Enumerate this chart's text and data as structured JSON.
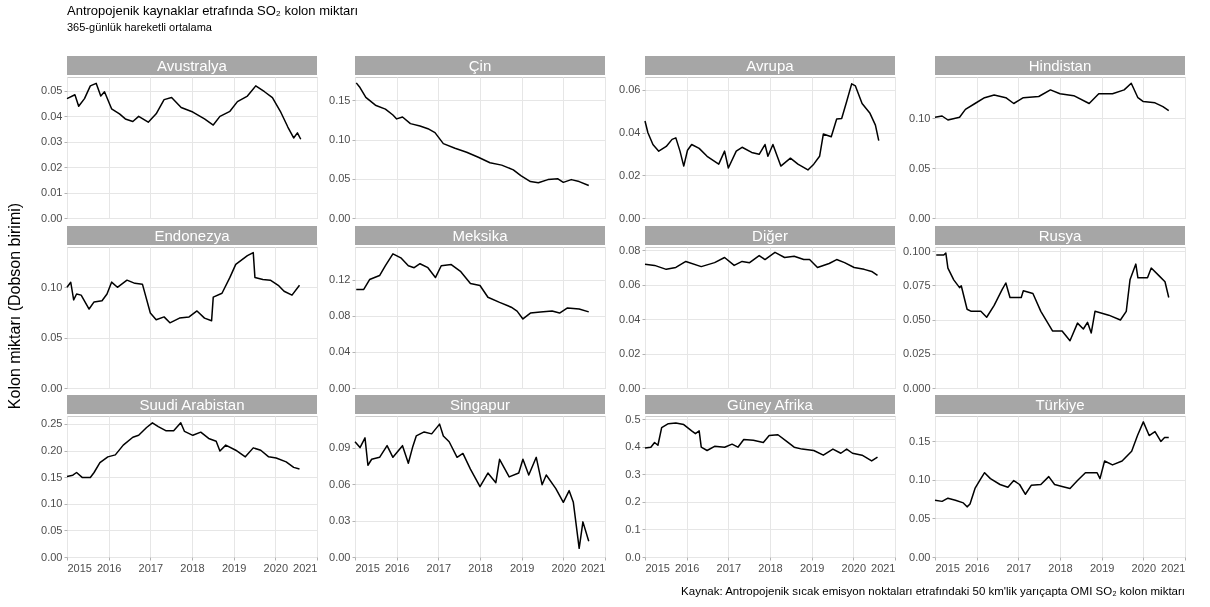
{
  "chart_data": [
    {
      "type": "line",
      "title": "Avustralya",
      "annotations": [
        "Antropojenik kaynaklar etrafında SO₂ kolon miktarı",
        "365-günlük hareketli ortalama"
      ],
      "xlim": [
        2015,
        2021
      ],
      "xticks": [
        2015,
        2016,
        2017,
        2018,
        2019,
        2020,
        2021
      ],
      "ylim": [
        0,
        0.0555
      ],
      "yticks": [
        {
          "value": 0,
          "label": "0.00"
        },
        0.01,
        0.02,
        0.03,
        0.04,
        0.05
      ],
      "grid": true,
      "tick_labels": "y",
      "series": [
        {
          "color": "#000000",
          "x": [
            2015.0,
            2015.19,
            2015.28,
            2015.42,
            2015.56,
            2015.7,
            2015.81,
            2015.9,
            2016.07,
            2016.26,
            2016.4,
            2016.58,
            2016.72,
            2016.95,
            2017.14,
            2017.33,
            2017.51,
            2017.74,
            2018.02,
            2018.3,
            2018.51,
            2018.67,
            2018.91,
            2019.09,
            2019.33,
            2019.53,
            2019.74,
            2019.93,
            2020.12,
            2020.3,
            2020.44,
            2020.53,
            2020.61
          ],
          "values": [
            0.047,
            0.0485,
            0.044,
            0.047,
            0.052,
            0.053,
            0.048,
            0.0497,
            0.043,
            0.041,
            0.039,
            0.038,
            0.04,
            0.0377,
            0.041,
            0.0466,
            0.0474,
            0.0435,
            0.0417,
            0.039,
            0.0366,
            0.04,
            0.042,
            0.0458,
            0.048,
            0.052,
            0.0497,
            0.0474,
            0.042,
            0.0358,
            0.0315,
            0.0335,
            0.031
          ]
        }
      ]
    },
    {
      "type": "line",
      "title": "Çin",
      "xlim": [
        2015,
        2021
      ],
      "xticks": [
        2015,
        2016,
        2017,
        2018,
        2019,
        2020,
        2021
      ],
      "ylim": [
        0,
        0.18
      ],
      "yticks": [
        {
          "value": 0,
          "label": "0.00"
        },
        0.05,
        {
          "value": 0.1,
          "label": "0.10"
        },
        0.15
      ],
      "grid": true,
      "tick_labels": "y",
      "series": [
        {
          "color": "#000000",
          "x": [
            2015.03,
            2015.12,
            2015.26,
            2015.49,
            2015.73,
            2015.91,
            2016.0,
            2016.14,
            2016.33,
            2016.56,
            2016.75,
            2016.92,
            2017.12,
            2017.4,
            2017.68,
            2017.96,
            2018.24,
            2018.52,
            2018.8,
            2018.98,
            2019.21,
            2019.4,
            2019.63,
            2019.87,
            2020.0,
            2020.19,
            2020.38,
            2020.61
          ],
          "values": [
            0.1725,
            0.1665,
            0.154,
            0.144,
            0.139,
            0.1315,
            0.1265,
            0.129,
            0.1205,
            0.1175,
            0.114,
            0.109,
            0.095,
            0.089,
            0.084,
            0.0775,
            0.0705,
            0.0675,
            0.0615,
            0.054,
            0.0465,
            0.045,
            0.049,
            0.05,
            0.0455,
            0.049,
            0.0465,
            0.0415
          ]
        }
      ]
    },
    {
      "type": "line",
      "title": "Avrupa",
      "xlim": [
        2015,
        2021
      ],
      "xticks": [
        2015,
        2016,
        2017,
        2018,
        2019,
        2020,
        2021
      ],
      "ylim": [
        0,
        0.066
      ],
      "yticks": [
        {
          "value": 0,
          "label": "0.00"
        },
        0.02,
        0.04,
        0.06
      ],
      "grid": true,
      "tick_labels": "y",
      "series": [
        {
          "color": "#000000",
          "x": [
            2015.0,
            2015.07,
            2015.19,
            2015.33,
            2015.51,
            2015.65,
            2015.74,
            2015.84,
            2015.93,
            2016.02,
            2016.12,
            2016.3,
            2016.49,
            2016.77,
            2016.91,
            2017.0,
            2017.19,
            2017.33,
            2017.56,
            2017.74,
            2017.88,
            2017.95,
            2018.07,
            2018.26,
            2018.49,
            2018.67,
            2018.91,
            2019.05,
            2019.19,
            2019.28,
            2019.47,
            2019.6,
            2019.72,
            2019.84,
            2019.96,
            2020.05,
            2020.21,
            2020.4,
            2020.53,
            2020.61
          ],
          "values": [
            0.0454,
            0.0399,
            0.0344,
            0.0313,
            0.0335,
            0.0368,
            0.0375,
            0.0313,
            0.0243,
            0.0317,
            0.0344,
            0.0326,
            0.0289,
            0.0252,
            0.0313,
            0.0234,
            0.0313,
            0.0331,
            0.0307,
            0.0298,
            0.0344,
            0.0289,
            0.0344,
            0.0243,
            0.028,
            0.0252,
            0.0225,
            0.0252,
            0.0289,
            0.0393,
            0.038,
            0.0463,
            0.0466,
            0.0545,
            0.0628,
            0.0618,
            0.0536,
            0.049,
            0.0435,
            0.0362
          ]
        }
      ]
    },
    {
      "type": "line",
      "title": "Hindistan",
      "xlim": [
        2015,
        2021
      ],
      "xticks": [
        2015,
        2016,
        2017,
        2018,
        2019,
        2020,
        2021
      ],
      "ylim": [
        0,
        0.141
      ],
      "yticks": [
        {
          "value": 0,
          "label": "0.00"
        },
        0.05,
        {
          "value": 0.1,
          "label": "0.10"
        }
      ],
      "grid": true,
      "tick_labels": "y",
      "series": [
        {
          "color": "#000000",
          "x": [
            2015.0,
            2015.17,
            2015.31,
            2015.59,
            2015.73,
            2015.96,
            2016.19,
            2016.42,
            2016.7,
            2016.89,
            2017.12,
            2017.49,
            2017.77,
            2018.0,
            2018.33,
            2018.7,
            2018.93,
            2019.26,
            2019.54,
            2019.71,
            2019.87,
            2020.0,
            2020.28,
            2020.47,
            2020.61
          ],
          "values": [
            0.1008,
            0.102,
            0.098,
            0.1008,
            0.1086,
            0.1145,
            0.1203,
            0.123,
            0.1203,
            0.1145,
            0.1203,
            0.1215,
            0.1281,
            0.1242,
            0.1223,
            0.1145,
            0.1242,
            0.1242,
            0.1281,
            0.1348,
            0.1203,
            0.1164,
            0.1152,
            0.1113,
            0.1074
          ]
        }
      ]
    },
    {
      "type": "line",
      "title": "Endonezya",
      "ylabel": "Kolon miktarı (Dobson birimi)",
      "xlim": [
        2015,
        2021
      ],
      "xticks": [
        2015,
        2016,
        2017,
        2018,
        2019,
        2020,
        2021
      ],
      "ylim": [
        0,
        0.14
      ],
      "yticks": [
        {
          "value": 0,
          "label": "0.00"
        },
        0.05,
        {
          "value": 0.1,
          "label": "0.10"
        }
      ],
      "grid": true,
      "tick_labels": "y",
      "series": [
        {
          "color": "#000000",
          "x": [
            2015.0,
            2015.09,
            2015.16,
            2015.23,
            2015.34,
            2015.53,
            2015.65,
            2015.84,
            2015.96,
            2016.07,
            2016.21,
            2016.44,
            2016.63,
            2016.81,
            2017.0,
            2017.14,
            2017.33,
            2017.47,
            2017.7,
            2017.93,
            2018.12,
            2018.3,
            2018.47,
            2018.51,
            2018.72,
            2018.91,
            2019.05,
            2019.33,
            2019.47,
            2019.51,
            2019.7,
            2019.88,
            2020.07,
            2020.21,
            2020.4,
            2020.58
          ],
          "values": [
            0.1,
            0.105,
            0.0875,
            0.0933,
            0.0922,
            0.0784,
            0.0855,
            0.0867,
            0.0933,
            0.1051,
            0.1,
            0.1071,
            0.1039,
            0.1031,
            0.0745,
            0.0678,
            0.0706,
            0.0647,
            0.0694,
            0.0706,
            0.0765,
            0.0694,
            0.0667,
            0.0902,
            0.0941,
            0.1098,
            0.1227,
            0.1314,
            0.1345,
            0.1098,
            0.1078,
            0.1071,
            0.102,
            0.0961,
            0.0922,
            0.102
          ]
        }
      ]
    },
    {
      "type": "line",
      "title": "Meksika",
      "xlim": [
        2015,
        2021
      ],
      "xticks": [
        2015,
        2016,
        2017,
        2018,
        2019,
        2020,
        2021
      ],
      "ylim": [
        0,
        0.156
      ],
      "yticks": [
        {
          "value": 0,
          "label": "0.00"
        },
        0.04,
        0.08,
        0.12
      ],
      "grid": true,
      "tick_labels": "y",
      "series": [
        {
          "color": "#000000",
          "x": [
            2015.03,
            2015.21,
            2015.35,
            2015.59,
            2015.73,
            2015.91,
            2016.1,
            2016.28,
            2016.42,
            2016.56,
            2016.75,
            2016.93,
            2017.07,
            2017.31,
            2017.54,
            2017.77,
            2018.0,
            2018.19,
            2018.47,
            2018.75,
            2018.89,
            2019.03,
            2019.21,
            2019.45,
            2019.73,
            2019.91,
            2020.1,
            2020.38,
            2020.61
          ],
          "values": [
            0.1091,
            0.1091,
            0.12,
            0.1244,
            0.1353,
            0.1484,
            0.144,
            0.1353,
            0.1331,
            0.1375,
            0.1331,
            0.1222,
            0.1353,
            0.1366,
            0.1287,
            0.1156,
            0.1134,
            0.1004,
            0.0947,
            0.0894,
            0.0851,
            0.0764,
            0.0829,
            0.0842,
            0.0851,
            0.0829,
            0.0886,
            0.0873,
            0.0842
          ]
        }
      ]
    },
    {
      "type": "line",
      "title": "Diğer",
      "xlim": [
        2015,
        2021
      ],
      "xticks": [
        2015,
        2016,
        2017,
        2018,
        2019,
        2020,
        2021
      ],
      "ylim": [
        0,
        0.082
      ],
      "yticks": [
        {
          "value": 0,
          "label": "0.00"
        },
        0.02,
        0.04,
        0.06,
        0.08
      ],
      "grid": true,
      "tick_labels": "y",
      "series": [
        {
          "color": "#000000",
          "x": [
            2015.0,
            2015.23,
            2015.51,
            2015.74,
            2015.98,
            2016.35,
            2016.67,
            2016.91,
            2017.14,
            2017.33,
            2017.51,
            2017.74,
            2017.88,
            2018.12,
            2018.35,
            2018.58,
            2018.81,
            2018.95,
            2019.14,
            2019.42,
            2019.6,
            2019.79,
            2020.02,
            2020.26,
            2020.44,
            2020.58
          ],
          "values": [
            0.072,
            0.0713,
            0.069,
            0.0701,
            0.0736,
            0.0706,
            0.0729,
            0.0759,
            0.0713,
            0.0736,
            0.0729,
            0.077,
            0.0747,
            0.0789,
            0.0759,
            0.0766,
            0.0747,
            0.0747,
            0.0701,
            0.0724,
            0.0747,
            0.0729,
            0.0701,
            0.069,
            0.0678,
            0.0655
          ]
        }
      ]
    },
    {
      "type": "line",
      "title": "Rusya",
      "xlim": [
        2015,
        2021
      ],
      "xticks": [
        2015,
        2016,
        2017,
        2018,
        2019,
        2020,
        2021
      ],
      "ylim": [
        0,
        0.103
      ],
      "yticks": [
        {
          "value": 0,
          "label": "0.000"
        },
        0.025,
        {
          "value": 0.05,
          "label": "0.050"
        },
        0.075,
        {
          "value": 0.1,
          "label": "0.100"
        }
      ],
      "grid": true,
      "tick_labels": "y",
      "series": [
        {
          "color": "#000000",
          "x": [
            2015.03,
            2015.21,
            2015.26,
            2015.31,
            2015.45,
            2015.59,
            2015.63,
            2015.77,
            2015.87,
            2016.1,
            2016.24,
            2016.42,
            2016.61,
            2016.7,
            2016.8,
            2017.07,
            2017.12,
            2017.35,
            2017.54,
            2017.68,
            2017.82,
            2018.05,
            2018.24,
            2018.42,
            2018.56,
            2018.66,
            2018.75,
            2018.84,
            2019.17,
            2019.45,
            2019.59,
            2019.68,
            2019.82,
            2019.87,
            2020.1,
            2020.19,
            2020.38,
            2020.52,
            2020.61
          ],
          "values": [
            0.0971,
            0.0971,
            0.0986,
            0.0876,
            0.079,
            0.0733,
            0.0747,
            0.0575,
            0.056,
            0.056,
            0.0517,
            0.0603,
            0.0718,
            0.0767,
            0.0661,
            0.0661,
            0.071,
            0.069,
            0.056,
            0.0489,
            0.0417,
            0.0417,
            0.0345,
            0.0474,
            0.0431,
            0.048,
            0.0402,
            0.056,
            0.0532,
            0.0497,
            0.056,
            0.079,
            0.0905,
            0.0805,
            0.0805,
            0.0876,
            0.0819,
            0.0776,
            0.0661
          ]
        }
      ]
    },
    {
      "type": "line",
      "title": "Suudi Arabistan",
      "xlim": [
        2015,
        2021
      ],
      "xticks": [
        2015,
        2016,
        2017,
        2018,
        2019,
        2020,
        2021
      ],
      "ylim": [
        0,
        0.265
      ],
      "yticks": [
        {
          "value": 0,
          "label": "0.00"
        },
        0.05,
        {
          "value": 0.1,
          "label": "0.10"
        },
        0.15,
        {
          "value": 0.2,
          "label": "0.20"
        },
        0.25
      ],
      "grid": true,
      "series": [
        {
          "color": "#000000",
          "x": [
            2015.0,
            2015.14,
            2015.23,
            2015.37,
            2015.56,
            2015.65,
            2015.79,
            2015.98,
            2016.16,
            2016.35,
            2016.58,
            2016.72,
            2016.91,
            2017.05,
            2017.19,
            2017.37,
            2017.56,
            2017.73,
            2017.82,
            2018.02,
            2018.21,
            2018.4,
            2018.58,
            2018.67,
            2018.81,
            2019.05,
            2019.28,
            2019.47,
            2019.65,
            2019.84,
            2020.02,
            2020.26,
            2020.44,
            2020.58
          ],
          "values": [
            0.1515,
            0.1537,
            0.1588,
            0.1493,
            0.1493,
            0.1588,
            0.1772,
            0.1882,
            0.1919,
            0.2103,
            0.225,
            0.2287,
            0.2434,
            0.2522,
            0.2449,
            0.2375,
            0.2375,
            0.2522,
            0.236,
            0.2287,
            0.2346,
            0.2228,
            0.2176,
            0.1993,
            0.2103,
            0.2007,
            0.1882,
            0.2051,
            0.2007,
            0.1882,
            0.186,
            0.1787,
            0.1684,
            0.1654
          ]
        }
      ]
    },
    {
      "type": "line",
      "title": "Singapur",
      "xlim": [
        2015,
        2021
      ],
      "xticks": [
        2015,
        2016,
        2017,
        2018,
        2019,
        2020,
        2021
      ],
      "ylim": [
        0,
        0.116
      ],
      "yticks": [
        {
          "value": 0,
          "label": "0.00"
        },
        0.03,
        0.06,
        0.09
      ],
      "grid": true,
      "series": [
        {
          "color": "#000000",
          "x": [
            2015.0,
            2015.12,
            2015.24,
            2015.31,
            2015.4,
            2015.59,
            2015.77,
            2015.91,
            2016.14,
            2016.28,
            2016.38,
            2016.47,
            2016.66,
            2016.84,
            2017.03,
            2017.12,
            2017.26,
            2017.45,
            2017.59,
            2017.77,
            2018.0,
            2018.19,
            2018.38,
            2018.47,
            2018.7,
            2018.93,
            2019.03,
            2019.17,
            2019.35,
            2019.49,
            2019.59,
            2019.82,
            2020.0,
            2020.14,
            2020.24,
            2020.38,
            2020.47,
            2020.61
          ],
          "values": [
            0.0948,
            0.09,
            0.098,
            0.0755,
            0.0804,
            0.082,
            0.0916,
            0.082,
            0.0916,
            0.0771,
            0.09,
            0.0996,
            0.1029,
            0.1013,
            0.1093,
            0.0996,
            0.0948,
            0.082,
            0.0852,
            0.0723,
            0.0579,
            0.0691,
            0.0611,
            0.0804,
            0.0659,
            0.0691,
            0.0804,
            0.0675,
            0.082,
            0.0595,
            0.0675,
            0.0563,
            0.045,
            0.0546,
            0.045,
            0.0071,
            0.0289,
            0.0129
          ]
        }
      ]
    },
    {
      "type": "line",
      "title": "Güney Afrika",
      "xlim": [
        2015,
        2021
      ],
      "xticks": [
        2015,
        2016,
        2017,
        2018,
        2019,
        2020,
        2021
      ],
      "ylim": [
        0,
        0.511
      ],
      "yticks": [
        {
          "value": 0,
          "label": "0.0"
        },
        0.1,
        0.2,
        0.3,
        0.4,
        0.5
      ],
      "grid": true,
      "series": [
        {
          "color": "#000000",
          "x": [
            2015.0,
            2015.14,
            2015.23,
            2015.31,
            2015.4,
            2015.56,
            2015.74,
            2015.93,
            2016.12,
            2016.21,
            2016.3,
            2016.35,
            2016.49,
            2016.67,
            2016.91,
            2017.09,
            2017.23,
            2017.37,
            2017.6,
            2017.84,
            2017.98,
            2018.19,
            2018.4,
            2018.58,
            2018.77,
            2019.05,
            2019.28,
            2019.51,
            2019.7,
            2019.84,
            2019.98,
            2020.21,
            2020.44,
            2020.58
          ],
          "values": [
            0.395,
            0.398,
            0.415,
            0.405,
            0.469,
            0.483,
            0.486,
            0.48,
            0.457,
            0.447,
            0.457,
            0.398,
            0.386,
            0.401,
            0.398,
            0.409,
            0.398,
            0.426,
            0.423,
            0.415,
            0.44,
            0.443,
            0.419,
            0.398,
            0.391,
            0.386,
            0.369,
            0.391,
            0.376,
            0.391,
            0.376,
            0.369,
            0.348,
            0.362
          ]
        }
      ]
    },
    {
      "type": "line",
      "title": "Türkiye",
      "annotations": [
        "Kaynak: Antropojenik sıcak emisyon noktaları etrafındaki 50 km'lik yarıçapta OMI SO₂ kolon miktarı"
      ],
      "xlim": [
        2015,
        2021
      ],
      "xticks": [
        2015,
        2016,
        2017,
        2018,
        2019,
        2020,
        2021
      ],
      "ylim": [
        0,
        0.183
      ],
      "yticks": [
        {
          "value": 0,
          "label": "0.00"
        },
        0.05,
        {
          "value": 0.1,
          "label": "0.10"
        },
        0.15
      ],
      "grid": true,
      "series": [
        {
          "color": "#000000",
          "x": [
            2015.0,
            2015.17,
            2015.31,
            2015.49,
            2015.68,
            2015.77,
            2015.84,
            2015.96,
            2016.1,
            2016.19,
            2016.33,
            2016.56,
            2016.75,
            2016.89,
            2017.03,
            2017.17,
            2017.31,
            2017.54,
            2017.73,
            2017.87,
            2018.05,
            2018.24,
            2018.42,
            2018.61,
            2018.89,
            2018.96,
            2019.07,
            2019.26,
            2019.49,
            2019.72,
            2019.86,
            2020.0,
            2020.14,
            2020.28,
            2020.42,
            2020.51,
            2020.61
          ],
          "values": [
            0.0737,
            0.0722,
            0.0763,
            0.0737,
            0.0702,
            0.0651,
            0.0687,
            0.089,
            0.1017,
            0.1094,
            0.1017,
            0.0941,
            0.0905,
            0.0992,
            0.0941,
            0.0814,
            0.093,
            0.0941,
            0.1043,
            0.0941,
            0.0916,
            0.089,
            0.0992,
            0.1094,
            0.1094,
            0.1017,
            0.1246,
            0.1195,
            0.1246,
            0.1373,
            0.1576,
            0.1754,
            0.1576,
            0.1627,
            0.15,
            0.1551,
            0.1551
          ]
        }
      ]
    }
  ]
}
